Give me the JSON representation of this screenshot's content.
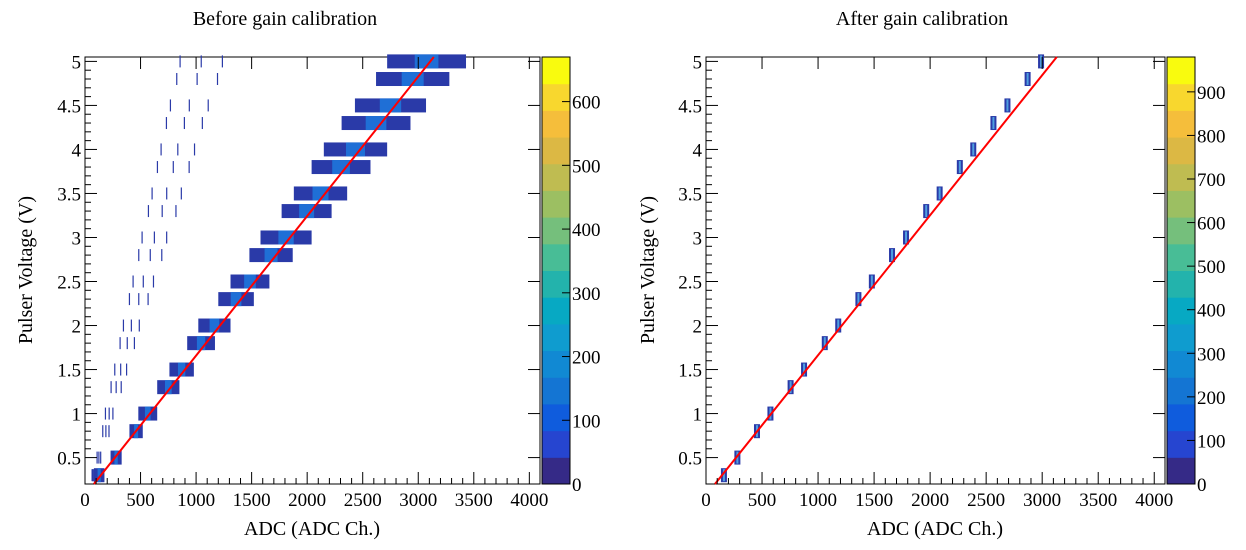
{
  "chart_data": [
    {
      "type": "heatmap",
      "title": "Before gain calibration",
      "xlabel": "ADC (ADC Ch.)",
      "ylabel": "Pulser Voltage (V)",
      "xlim": [
        0,
        4096
      ],
      "ylim": [
        0.2,
        5.05
      ],
      "xticks": [
        "0",
        "500",
        "1000",
        "1500",
        "2000",
        "2500",
        "3000",
        "3500",
        "4000"
      ],
      "xtick_values": [
        0,
        500,
        1000,
        1500,
        2000,
        2500,
        3000,
        3500,
        4000
      ],
      "yticks": [
        "0.5",
        "1",
        "1.5",
        "2",
        "2.5",
        "3",
        "3.5",
        "4",
        "4.5",
        "5"
      ],
      "ytick_values": [
        0.5,
        1,
        1.5,
        2,
        2.5,
        3,
        3.5,
        4,
        4.5,
        5
      ],
      "colorbar": {
        "min": 0,
        "max": 670,
        "ticks": [
          "0",
          "100",
          "200",
          "300",
          "400",
          "500",
          "600"
        ],
        "tick_values": [
          0,
          100,
          200,
          300,
          400,
          500,
          600
        ]
      },
      "pulser_voltages": [
        0.3,
        0.5,
        0.8,
        1.0,
        1.3,
        1.5,
        1.8,
        2.0,
        2.3,
        2.5,
        2.8,
        3.0,
        3.3,
        3.5,
        3.8,
        4.0,
        4.3,
        4.5,
        4.8,
        5.0
      ],
      "bands": [
        {
          "v": 0.3,
          "x0": 80,
          "x1": 175
        },
        {
          "v": 0.5,
          "x0": 230,
          "x1": 330
        },
        {
          "v": 0.8,
          "x0": 400,
          "x1": 520
        },
        {
          "v": 1.0,
          "x0": 480,
          "x1": 650
        },
        {
          "v": 1.3,
          "x0": 650,
          "x1": 850
        },
        {
          "v": 1.5,
          "x0": 760,
          "x1": 980
        },
        {
          "v": 1.8,
          "x0": 920,
          "x1": 1170
        },
        {
          "v": 2.0,
          "x0": 1020,
          "x1": 1310
        },
        {
          "v": 2.3,
          "x0": 1200,
          "x1": 1520
        },
        {
          "v": 2.5,
          "x0": 1310,
          "x1": 1660
        },
        {
          "v": 2.8,
          "x0": 1480,
          "x1": 1870
        },
        {
          "v": 3.0,
          "x0": 1580,
          "x1": 2040
        },
        {
          "v": 3.3,
          "x0": 1770,
          "x1": 2220
        },
        {
          "v": 3.5,
          "x0": 1880,
          "x1": 2360
        },
        {
          "v": 3.8,
          "x0": 2040,
          "x1": 2570
        },
        {
          "v": 4.0,
          "x0": 2150,
          "x1": 2720
        },
        {
          "v": 4.3,
          "x0": 2310,
          "x1": 2930
        },
        {
          "v": 4.5,
          "x0": 2430,
          "x1": 3070
        },
        {
          "v": 4.8,
          "x0": 2620,
          "x1": 3280
        },
        {
          "v": 5.0,
          "x0": 2720,
          "x1": 3430
        }
      ],
      "fit_line": {
        "x": [
          80,
          3140
        ],
        "y": [
          0.2,
          5.05
        ],
        "color": "#ff0000"
      },
      "colors": {
        "band_low": "#2a3aa8",
        "band_mid": "#1f6fd6",
        "band_high": "#18a8c8"
      }
    },
    {
      "type": "heatmap",
      "title": "After gain calibration",
      "xlabel": "ADC (ADC Ch.)",
      "ylabel": "Pulser Voltage (V)",
      "xlim": [
        0,
        4096
      ],
      "ylim": [
        0.2,
        5.05
      ],
      "xticks": [
        "0",
        "500",
        "1000",
        "1500",
        "2000",
        "2500",
        "3000",
        "3500",
        "4000"
      ],
      "xtick_values": [
        0,
        500,
        1000,
        1500,
        2000,
        2500,
        3000,
        3500,
        4000
      ],
      "yticks": [
        "0.5",
        "1",
        "1.5",
        "2",
        "2.5",
        "3",
        "3.5",
        "4",
        "4.5",
        "5"
      ],
      "ytick_values": [
        0.5,
        1,
        1.5,
        2,
        2.5,
        3,
        3.5,
        4,
        4.5,
        5
      ],
      "colorbar": {
        "min": 0,
        "max": 980,
        "ticks": [
          "0",
          "100",
          "200",
          "300",
          "400",
          "500",
          "600",
          "700",
          "800",
          "900"
        ],
        "tick_values": [
          0,
          100,
          200,
          300,
          400,
          500,
          600,
          700,
          800,
          900
        ]
      },
      "points": [
        {
          "v": 0.3,
          "adc": 160
        },
        {
          "v": 0.5,
          "adc": 280
        },
        {
          "v": 0.8,
          "adc": 455
        },
        {
          "v": 1.0,
          "adc": 575
        },
        {
          "v": 1.3,
          "adc": 755
        },
        {
          "v": 1.5,
          "adc": 875
        },
        {
          "v": 1.8,
          "adc": 1060
        },
        {
          "v": 2.0,
          "adc": 1180
        },
        {
          "v": 2.3,
          "adc": 1360
        },
        {
          "v": 2.5,
          "adc": 1480
        },
        {
          "v": 2.8,
          "adc": 1660
        },
        {
          "v": 3.0,
          "adc": 1785
        },
        {
          "v": 3.3,
          "adc": 1965
        },
        {
          "v": 3.5,
          "adc": 2085
        },
        {
          "v": 3.8,
          "adc": 2265
        },
        {
          "v": 4.0,
          "adc": 2385
        },
        {
          "v": 4.3,
          "adc": 2565
        },
        {
          "v": 4.5,
          "adc": 2690
        },
        {
          "v": 4.8,
          "adc": 2870
        },
        {
          "v": 5.0,
          "adc": 2990
        }
      ],
      "fit_line": {
        "x": [
          80,
          3130
        ],
        "y": [
          0.2,
          5.05
        ],
        "color": "#ff0000"
      },
      "colors": {
        "marker_outer": "#2a3aa8",
        "marker_inner": "#4f9fe0"
      }
    }
  ]
}
